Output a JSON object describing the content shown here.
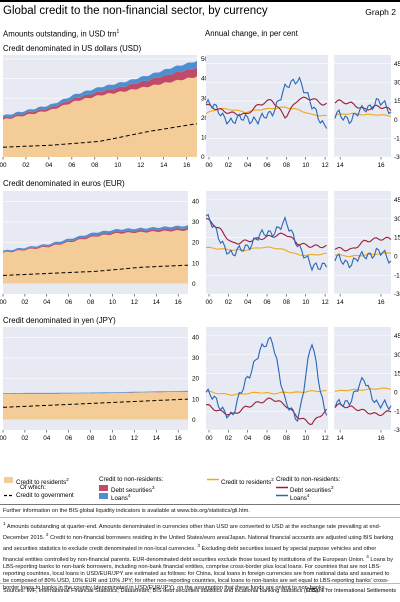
{
  "header": {
    "title": "Global credit to the non-financial sector, by currency",
    "graph_no": "Graph 2"
  },
  "left_heading": "Amounts outstanding, in USD trn",
  "left_heading_sup": "1",
  "right_heading": "Annual change, in per cent",
  "sections": [
    {
      "label": "Credit denominated in US dollars (USD)"
    },
    {
      "label": "Credit denominated in euros (EUR)"
    },
    {
      "label": "Credit denominated in yen (JPY)"
    }
  ],
  "colors": {
    "residents": "#f3cc97",
    "debt": "#c04a68",
    "loans": "#4f8fcf",
    "government": "#000000",
    "resid_line": "#f0a81c",
    "debt_line": "#9b1c34",
    "loans_line": "#2a66b5",
    "frame": "#e7eaf2"
  },
  "legend": {
    "residents": "Credit to residents",
    "residents_sup": "2",
    "of_which": "Of which:",
    "government": "Credit to government",
    "nonres_head": "Credit to non-residents:",
    "debt": "Debt securities",
    "debt_sup": "3",
    "loans": "Loans",
    "loans_sup": "4",
    "r_residents": "Credit to residents",
    "r_residents_sup": "2",
    "r_head": "Credit to non-residents:",
    "r_debt": "Debt securities",
    "r_debt_sup": "3",
    "r_loans": "Loans",
    "r_loans_sup": "4"
  },
  "further_info": "Further information on the BIS global liquidity indicators is available at www.bis.org/statistics/gli.htm.",
  "footnotes": [
    {
      "n": "1",
      "text": "Amounts outstanding at quarter-end. Amounts denominated in currencies other than USD are converted to USD at the exchange rate prevailing at end-December 2015."
    },
    {
      "n": "2",
      "text": "Credit to non-financial borrowers residing in the United States/euro area/Japan. National financial accounts are adjusted using BIS banking and securities statistics to exclude credit denominated in non-local currencies."
    },
    {
      "n": "3",
      "text": "Excluding debt securities issued by special purpose vehicles and other financial entities controlled by non-financial parents. EUR-denominated debt securities exclude those issued by institutions of the European Union."
    },
    {
      "n": "4",
      "text": "Loans by LBS-reporting banks to non-bank borrowers, including non-bank financial entities, comprise cross-border plus local loans. For countries that are not LBS-reporting countries, local loans in USD/EUR/JPY are estimated as follows: for China, local loans in foreign currencies are from national data and assumed to be composed of 80% USD, 10% EUR and 10% JPY; for other non-reporting countries, local loans to non-banks are set equal to LBS-reporting banks' cross-border loans to banks in the country (denominated in USD/EUR/JPY), on the assumption that these funds are onlent to non-banks."
    }
  ],
  "sources": "Sources: IMF, International Financial Statistics; Datastream; BIS debt securities statistics and locational banking statistics (LBS).",
  "copyright": "© Bank for International Settlements",
  "chart_data": [
    {
      "type": "area",
      "title": "Credit denominated in US dollars (USD)",
      "x": [
        2000,
        2002,
        2004,
        2006,
        2008,
        2010,
        2012,
        2014,
        2016
      ],
      "xticks": [
        "00",
        "02",
        "04",
        "06",
        "08",
        "10",
        "12",
        "14",
        "16"
      ],
      "yticks": [
        0,
        10,
        20,
        30,
        40,
        50
      ],
      "ylim": [
        0,
        52
      ],
      "series": [
        {
          "name": "Credit to residents",
          "values": [
            19.0,
            21.5,
            24.0,
            28.5,
            31.5,
            33.5,
            36.0,
            38.5,
            41.0
          ]
        },
        {
          "name": "Debt securities",
          "values": [
            0.8,
            1.0,
            1.2,
            1.5,
            1.8,
            2.5,
            3.2,
            4.0,
            4.5
          ]
        },
        {
          "name": "Loans",
          "values": [
            1.2,
            1.3,
            1.5,
            2.0,
            2.3,
            2.3,
            2.5,
            3.2,
            3.5
          ]
        },
        {
          "name": "Credit to government",
          "values": [
            5.0,
            5.5,
            6.0,
            7.0,
            8.0,
            10.5,
            13.0,
            15.0,
            17.0
          ]
        }
      ]
    },
    {
      "type": "line",
      "title": "Credit denominated in US dollars (USD)",
      "ylabel": "Annual change, in per cent",
      "xticks": [
        "00",
        "02",
        "04",
        "06",
        "08",
        "10",
        "12",
        "14",
        "16"
      ],
      "yticks": [
        -30,
        -15,
        0,
        15,
        30,
        45
      ],
      "ylim": [
        -30,
        52
      ],
      "series": [
        {
          "name": "Credit to residents",
          "values": [
            5,
            9,
            8,
            6,
            8,
            9,
            10,
            8,
            4,
            3,
            4,
            5,
            4,
            4,
            3
          ]
        },
        {
          "name": "Debt securities",
          "values": [
            12,
            8,
            5,
            4,
            12,
            16,
            2,
            17,
            17,
            12,
            15,
            13,
            8,
            11,
            8
          ]
        },
        {
          "name": "Loans",
          "values": [
            13,
            7,
            -3,
            3,
            -2,
            7,
            24,
            35,
            10,
            -4,
            4,
            1,
            8,
            16,
            5
          ]
        }
      ]
    },
    {
      "type": "area",
      "title": "Credit denominated in euros (EUR)",
      "xticks": [
        "00",
        "02",
        "04",
        "06",
        "08",
        "10",
        "12",
        "14",
        "16"
      ],
      "yticks": [
        0,
        10,
        20,
        30,
        40
      ],
      "ylim": [
        -5,
        45
      ],
      "series": [
        {
          "name": "Credit to residents",
          "values": [
            15.0,
            16.5,
            18.0,
            20.5,
            23.0,
            24.5,
            25.0,
            25.5,
            26.0
          ]
        },
        {
          "name": "Debt securities",
          "values": [
            0.3,
            0.4,
            0.5,
            0.6,
            0.7,
            0.8,
            0.8,
            0.9,
            1.0
          ]
        },
        {
          "name": "Loans",
          "values": [
            0.6,
            0.7,
            0.8,
            1.0,
            1.2,
            1.1,
            1.1,
            1.1,
            1.2
          ]
        },
        {
          "name": "Credit to government",
          "values": [
            4.0,
            4.5,
            5.0,
            5.5,
            6.0,
            7.0,
            8.0,
            8.5,
            9.0
          ]
        }
      ]
    },
    {
      "type": "line",
      "title": "Credit denominated in euros (EUR)",
      "xticks": [
        "00",
        "02",
        "04",
        "06",
        "08",
        "10",
        "12",
        "14",
        "16"
      ],
      "yticks": [
        -30,
        -15,
        0,
        15,
        30,
        45
      ],
      "ylim": [
        -30,
        52
      ],
      "series": [
        {
          "name": "Credit to residents",
          "values": [
            7,
            6,
            5,
            5,
            7,
            7,
            5,
            1,
            1,
            2,
            1,
            0,
            1,
            2,
            3
          ]
        },
        {
          "name": "Debt securities",
          "values": [
            30,
            22,
            10,
            12,
            14,
            16,
            18,
            10,
            8,
            8,
            6,
            5,
            12,
            14,
            14
          ]
        },
        {
          "name": "Loans",
          "values": [
            32,
            15,
            0,
            8,
            15,
            20,
            26,
            10,
            -10,
            -5,
            -2,
            -5,
            0,
            5,
            -5
          ]
        }
      ]
    },
    {
      "type": "area",
      "title": "Credit denominated in yen (JPY)",
      "xticks": [
        "00",
        "02",
        "04",
        "06",
        "08",
        "10",
        "12",
        "14",
        "16"
      ],
      "yticks": [
        0,
        10,
        20,
        30,
        40
      ],
      "ylim": [
        -5,
        45
      ],
      "series": [
        {
          "name": "Credit to residents",
          "values": [
            12.5,
            12.6,
            12.6,
            12.7,
            12.8,
            13.0,
            13.2,
            13.4,
            13.6
          ]
        },
        {
          "name": "Debt securities",
          "values": [
            0.1,
            0.1,
            0.1,
            0.1,
            0.1,
            0.1,
            0.1,
            0.1,
            0.1
          ]
        },
        {
          "name": "Loans",
          "values": [
            0.3,
            0.3,
            0.3,
            0.3,
            0.3,
            0.3,
            0.3,
            0.3,
            0.3
          ]
        },
        {
          "name": "Credit to government",
          "values": [
            6.0,
            6.5,
            7.0,
            7.5,
            8.0,
            8.5,
            9.0,
            9.5,
            10.0
          ]
        }
      ]
    },
    {
      "type": "line",
      "title": "Credit denominated in yen (JPY)",
      "xticks": [
        "00",
        "02",
        "04",
        "06",
        "08",
        "10",
        "12",
        "14",
        "16"
      ],
      "yticks": [
        -30,
        -15,
        0,
        15,
        30,
        45
      ],
      "ylim": [
        -30,
        52
      ],
      "series": [
        {
          "name": "Credit to residents",
          "values": [
            1,
            -1,
            -2,
            -1,
            0,
            -1,
            0,
            0,
            1,
            1,
            1,
            2,
            2,
            3,
            3
          ]
        },
        {
          "name": "Debt securities",
          "values": [
            -10,
            -15,
            -18,
            -12,
            -8,
            -5,
            -10,
            -20,
            -25,
            -15,
            -10,
            -12,
            -15,
            -18,
            -15
          ]
        },
        {
          "name": "Loans",
          "values": [
            0,
            -10,
            -20,
            10,
            30,
            45,
            -10,
            -20,
            40,
            -15,
            -10,
            -5,
            10,
            -10,
            -12
          ]
        }
      ]
    }
  ]
}
